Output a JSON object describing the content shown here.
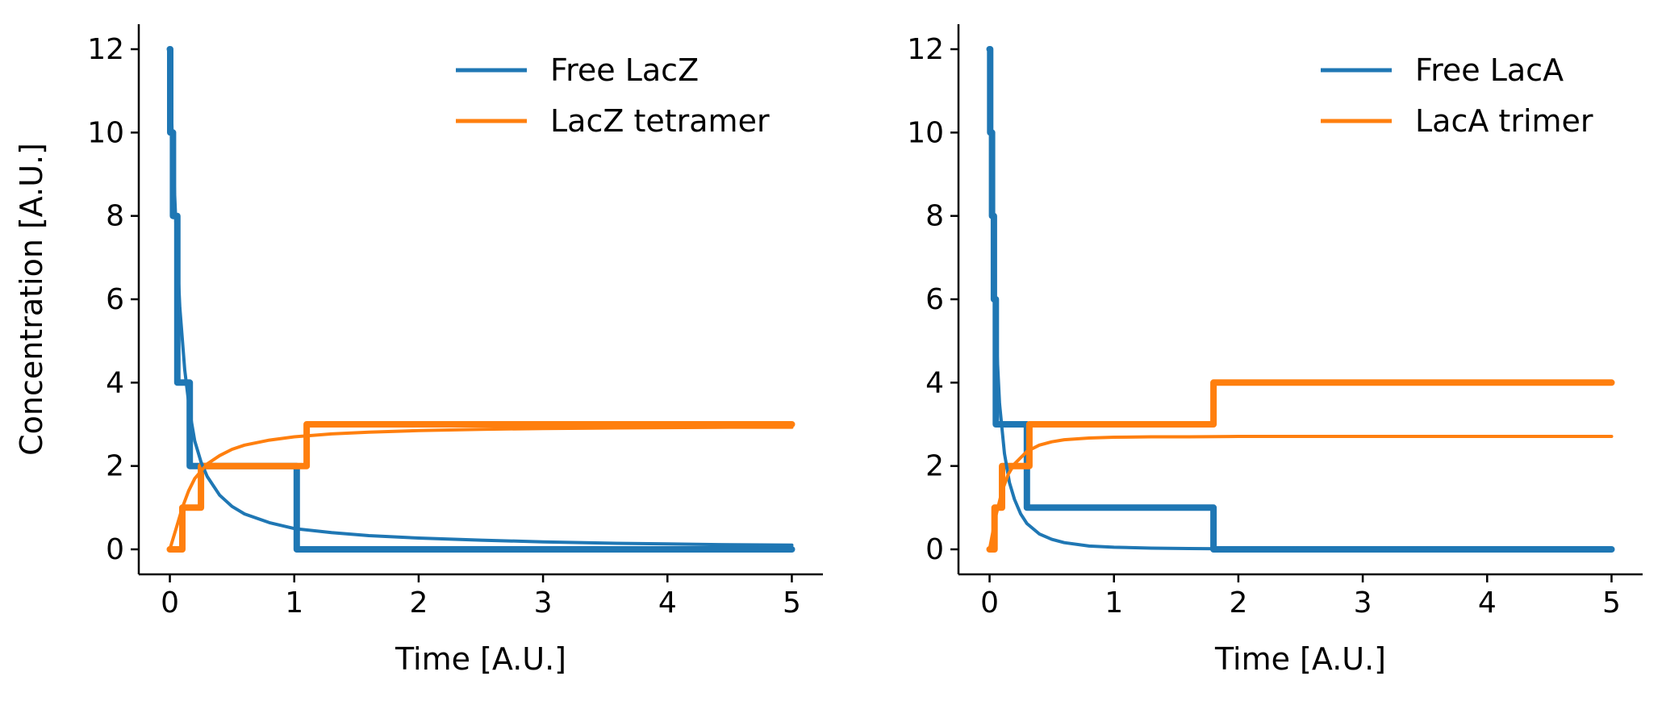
{
  "chart_data": [
    {
      "type": "line",
      "xlabel": "Time [A.U.]",
      "ylabel": "Concentration [A.U.]",
      "xlim": [
        -0.25,
        5.25
      ],
      "ylim": [
        -0.6,
        12.6
      ],
      "xticks": [
        0,
        1,
        2,
        3,
        4,
        5
      ],
      "yticks": [
        0,
        2,
        4,
        6,
        8,
        10,
        12
      ],
      "legend_position": "top-right",
      "grid": false,
      "series": [
        {
          "name": "Free LacZ",
          "color": "#1f77b4",
          "style": "solid",
          "x": [
            0,
            0.02,
            0.05,
            0.08,
            0.12,
            0.16,
            0.2,
            0.25,
            0.3,
            0.4,
            0.5,
            0.6,
            0.8,
            1.0,
            1.3,
            1.6,
            2.0,
            2.5,
            3.0,
            3.5,
            4.0,
            4.5,
            5.0
          ],
          "y": [
            12,
            9.8,
            7.7,
            5.8,
            4.3,
            3.3,
            2.6,
            2.1,
            1.75,
            1.3,
            1.03,
            0.85,
            0.64,
            0.5,
            0.4,
            0.33,
            0.27,
            0.22,
            0.18,
            0.15,
            0.13,
            0.11,
            0.1
          ]
        },
        {
          "name": "LacZ tetramer",
          "color": "#ff7f0e",
          "style": "solid",
          "x": [
            0,
            0.05,
            0.1,
            0.15,
            0.2,
            0.3,
            0.4,
            0.5,
            0.6,
            0.8,
            1.0,
            1.3,
            1.6,
            2.0,
            2.5,
            3.0,
            3.5,
            4.0,
            4.5,
            5.0
          ],
          "y": [
            0,
            0.5,
            1.0,
            1.4,
            1.7,
            2.05,
            2.25,
            2.4,
            2.5,
            2.62,
            2.7,
            2.77,
            2.81,
            2.85,
            2.88,
            2.9,
            2.91,
            2.92,
            2.93,
            2.93
          ]
        },
        {
          "name": "",
          "color": "#1f77b4",
          "style": "stochastic",
          "x": [
            0,
            0.003,
            0.003,
            0.025,
            0.025,
            0.06,
            0.06,
            0.16,
            0.16,
            1.02,
            1.02,
            5.0
          ],
          "y": [
            12,
            12,
            10,
            10,
            8,
            8,
            4,
            4,
            2,
            2,
            0,
            0
          ]
        },
        {
          "name": "",
          "color": "#ff7f0e",
          "style": "stochastic",
          "x": [
            0,
            0.1,
            0.1,
            0.25,
            0.25,
            1.1,
            1.1,
            5.0
          ],
          "y": [
            0,
            0,
            1,
            1,
            2,
            2,
            3,
            3
          ]
        }
      ]
    },
    {
      "type": "line",
      "xlabel": "Time [A.U.]",
      "ylabel": "",
      "xlim": [
        -0.25,
        5.25
      ],
      "ylim": [
        -0.6,
        12.6
      ],
      "xticks": [
        0,
        1,
        2,
        3,
        4,
        5
      ],
      "yticks": [
        0,
        2,
        4,
        6,
        8,
        10,
        12
      ],
      "legend_position": "top-right",
      "grid": false,
      "series": [
        {
          "name": "Free LacA",
          "color": "#1f77b4",
          "style": "solid",
          "x": [
            0,
            0.02,
            0.05,
            0.08,
            0.12,
            0.16,
            0.2,
            0.25,
            0.3,
            0.4,
            0.5,
            0.6,
            0.8,
            1.0,
            1.3,
            1.6,
            2.0,
            2.5,
            3.0,
            4.0,
            5.0
          ],
          "y": [
            12,
            8.4,
            5.3,
            3.5,
            2.3,
            1.6,
            1.2,
            0.85,
            0.62,
            0.37,
            0.24,
            0.16,
            0.08,
            0.05,
            0.03,
            0.02,
            0.01,
            0.005,
            0.003,
            0.001,
            0.001
          ]
        },
        {
          "name": "LacA trimer",
          "color": "#ff7f0e",
          "style": "solid",
          "x": [
            0,
            0.05,
            0.1,
            0.15,
            0.2,
            0.3,
            0.4,
            0.5,
            0.6,
            0.8,
            1.0,
            1.3,
            1.6,
            2.0,
            3.0,
            4.0,
            5.0
          ],
          "y": [
            0,
            0.8,
            1.4,
            1.8,
            2.05,
            2.35,
            2.5,
            2.58,
            2.63,
            2.67,
            2.69,
            2.7,
            2.7,
            2.71,
            2.71,
            2.71,
            2.71
          ]
        },
        {
          "name": "",
          "color": "#1f77b4",
          "style": "stochastic",
          "x": [
            0,
            0.005,
            0.005,
            0.02,
            0.02,
            0.035,
            0.035,
            0.05,
            0.05,
            0.3,
            0.3,
            1.8,
            1.8,
            5.0
          ],
          "y": [
            12,
            12,
            10,
            10,
            8,
            8,
            6,
            6,
            3,
            3,
            1,
            1,
            0,
            0
          ]
        },
        {
          "name": "",
          "color": "#ff7f0e",
          "style": "stochastic",
          "x": [
            0,
            0.04,
            0.04,
            0.1,
            0.1,
            0.32,
            0.32,
            1.8,
            1.8,
            5.0
          ],
          "y": [
            0,
            0,
            1,
            1,
            2,
            2,
            3,
            3,
            4,
            4
          ]
        }
      ]
    }
  ]
}
